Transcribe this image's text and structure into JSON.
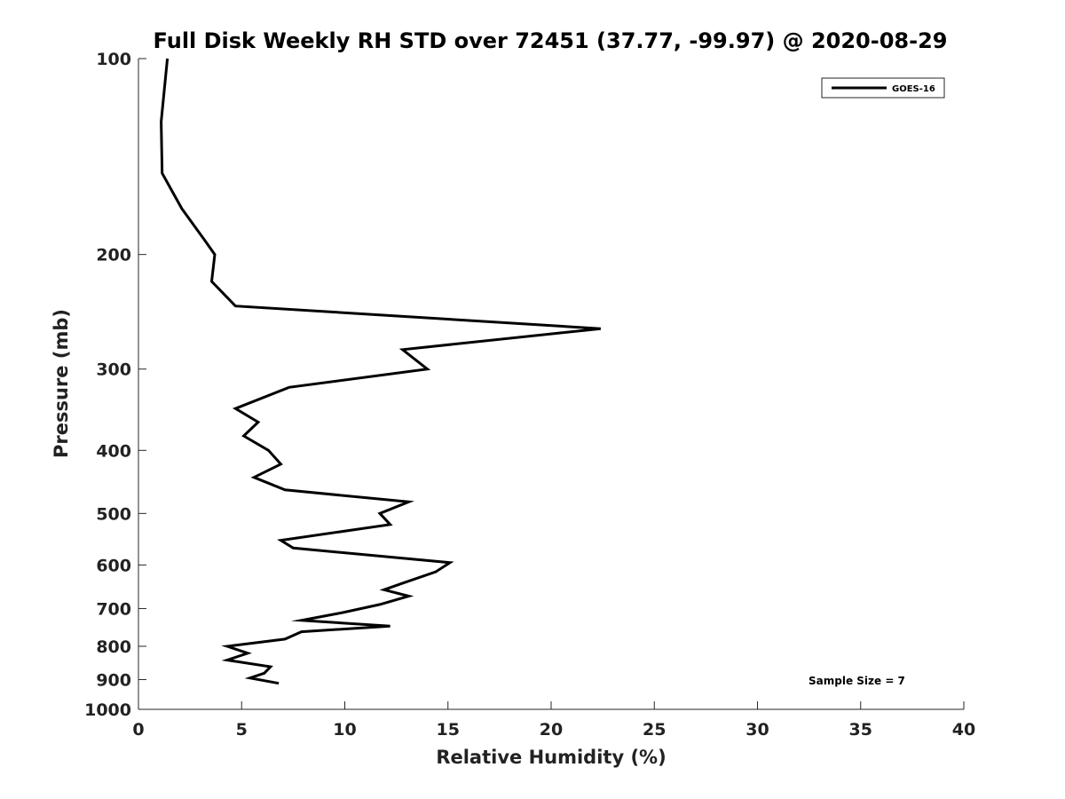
{
  "chart_data": {
    "type": "line",
    "title": "Full Disk Weekly RH STD over 72451 (37.77, -99.97) @ 2020-08-29",
    "xlabel": "Relative Humidity (%)",
    "ylabel": "Pressure (mb)",
    "xlim": [
      0,
      40
    ],
    "ylim": [
      100,
      1000
    ],
    "yscale": "log",
    "yreversed": true,
    "xticks": [
      0,
      5,
      10,
      15,
      20,
      25,
      30,
      35,
      40
    ],
    "yticks": [
      100,
      200,
      300,
      400,
      500,
      600,
      700,
      800,
      900,
      1000
    ],
    "legend": {
      "position": "top-right",
      "entries": [
        "GOES-16"
      ]
    },
    "annotation": "Sample Size = 7",
    "series": [
      {
        "name": "GOES-16",
        "color": "#000000",
        "points": [
          [
            1.4,
            100
          ],
          [
            1.1,
            125
          ],
          [
            1.15,
            150
          ],
          [
            2.1,
            170
          ],
          [
            3.2,
            190
          ],
          [
            3.7,
            200
          ],
          [
            3.55,
            220
          ],
          [
            4.7,
            240
          ],
          [
            22.4,
            260
          ],
          [
            12.8,
            280
          ],
          [
            14.0,
            300
          ],
          [
            7.3,
            320
          ],
          [
            4.7,
            345
          ],
          [
            5.8,
            362
          ],
          [
            5.1,
            380
          ],
          [
            6.3,
            400
          ],
          [
            6.9,
            420
          ],
          [
            5.6,
            440
          ],
          [
            7.1,
            460
          ],
          [
            13.1,
            480
          ],
          [
            11.7,
            500
          ],
          [
            12.2,
            520
          ],
          [
            6.9,
            550
          ],
          [
            7.5,
            565
          ],
          [
            15.1,
            595
          ],
          [
            14.4,
            615
          ],
          [
            12.8,
            640
          ],
          [
            11.9,
            655
          ],
          [
            13.1,
            670
          ],
          [
            11.7,
            690
          ],
          [
            9.9,
            710
          ],
          [
            7.9,
            730
          ],
          [
            12.2,
            745
          ],
          [
            7.9,
            760
          ],
          [
            7.1,
            780
          ],
          [
            4.3,
            800
          ],
          [
            5.3,
            820
          ],
          [
            4.3,
            840
          ],
          [
            6.4,
            860
          ],
          [
            6.1,
            880
          ],
          [
            5.4,
            895
          ],
          [
            6.8,
            912
          ]
        ]
      }
    ]
  }
}
